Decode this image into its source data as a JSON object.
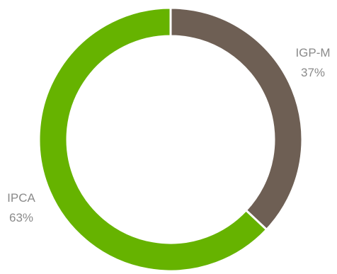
{
  "chart_data": {
    "type": "pie",
    "variant": "donut",
    "slices": [
      {
        "label": "IGP-M",
        "value": 37,
        "value_label": "37%",
        "color": "#6e5f54"
      },
      {
        "label": "IPCA",
        "value": 63,
        "value_label": "63%",
        "color": "#66b300"
      }
    ],
    "legend": "none"
  }
}
